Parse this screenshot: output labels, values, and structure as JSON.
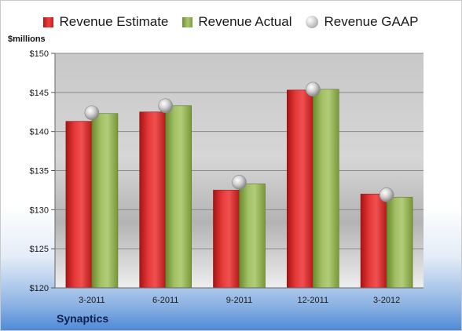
{
  "legend": {
    "estimate": "Revenue Estimate",
    "actual": "Revenue Actual",
    "gaap": "Revenue GAAP"
  },
  "unit_label": "$millions",
  "company": "Synaptics",
  "colors": {
    "estimate": "#d42323",
    "actual": "#8fae52",
    "gaap": "#b5b5b5"
  },
  "chart_data": {
    "type": "bar",
    "categories": [
      "3-2011",
      "6-2011",
      "9-2011",
      "12-2011",
      "3-2012"
    ],
    "series": [
      {
        "name": "Revenue Estimate",
        "values": [
          141.3,
          142.5,
          132.5,
          145.3,
          132.0
        ]
      },
      {
        "name": "Revenue Actual",
        "values": [
          142.3,
          143.3,
          133.3,
          145.4,
          131.6
        ]
      },
      {
        "name": "Revenue GAAP",
        "type": "scatter",
        "values": [
          142.4,
          143.3,
          133.5,
          145.4,
          131.9
        ]
      }
    ],
    "ylabel": "$millions",
    "ylim": [
      120,
      150
    ],
    "yticks": [
      120,
      125,
      130,
      135,
      140,
      145,
      150
    ],
    "ytick_labels": [
      "$120",
      "$125",
      "$130",
      "$135",
      "$140",
      "$145",
      "$150"
    ],
    "grid": true,
    "legend_position": "top"
  }
}
